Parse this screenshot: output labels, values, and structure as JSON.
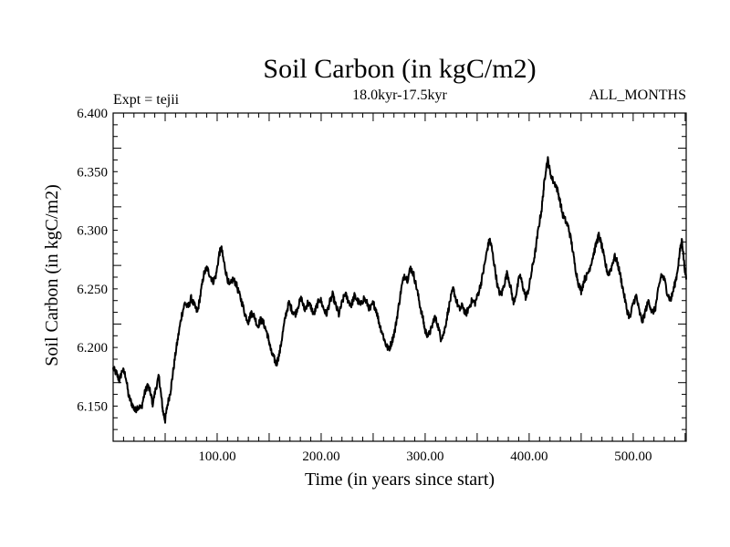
{
  "chart_data": {
    "type": "line",
    "title": "Soil Carbon (in kgC/m2)",
    "subtitle": "18.0kyr-17.5kyr",
    "left_label": "Expt = tejii",
    "right_label": "ALL_MONTHS",
    "xlabel": "Time (in years since start)",
    "ylabel": "Soil Carbon (in kgC/m2)",
    "xlim": [
      0,
      551
    ],
    "ylim": [
      6.12,
      6.4
    ],
    "x_ticks": [
      {
        "value": 100,
        "label": "100.00"
      },
      {
        "value": 200,
        "label": "200.00"
      },
      {
        "value": 300,
        "label": "300.00"
      },
      {
        "value": 400,
        "label": "400.00"
      },
      {
        "value": 500,
        "label": "500.00"
      }
    ],
    "y_ticks": [
      {
        "value": 6.15,
        "label": "6.150"
      },
      {
        "value": 6.2,
        "label": "6.200"
      },
      {
        "value": 6.25,
        "label": "6.250"
      },
      {
        "value": 6.3,
        "label": "6.300"
      },
      {
        "value": 6.35,
        "label": "6.350"
      },
      {
        "value": 6.4,
        "label": "6.400"
      }
    ],
    "series": [
      {
        "name": "Soil Carbon",
        "color": "#000000",
        "points": [
          [
            0,
            6.182
          ],
          [
            3,
            6.178
          ],
          [
            6,
            6.172
          ],
          [
            9,
            6.181
          ],
          [
            12,
            6.176
          ],
          [
            15,
            6.158
          ],
          [
            18,
            6.152
          ],
          [
            21,
            6.146
          ],
          [
            24,
            6.15
          ],
          [
            27,
            6.148
          ],
          [
            30,
            6.16
          ],
          [
            33,
            6.168
          ],
          [
            36,
            6.161
          ],
          [
            38,
            6.152
          ],
          [
            41,
            6.165
          ],
          [
            44,
            6.175
          ],
          [
            46,
            6.16
          ],
          [
            48,
            6.145
          ],
          [
            50,
            6.138
          ],
          [
            52,
            6.15
          ],
          [
            55,
            6.162
          ],
          [
            57,
            6.175
          ],
          [
            60,
            6.195
          ],
          [
            63,
            6.212
          ],
          [
            66,
            6.228
          ],
          [
            69,
            6.238
          ],
          [
            72,
            6.234
          ],
          [
            75,
            6.242
          ],
          [
            78,
            6.236
          ],
          [
            81,
            6.23
          ],
          [
            84,
            6.245
          ],
          [
            87,
            6.262
          ],
          [
            90,
            6.268
          ],
          [
            93,
            6.262
          ],
          [
            96,
            6.256
          ],
          [
            99,
            6.262
          ],
          [
            102,
            6.28
          ],
          [
            104,
            6.285
          ],
          [
            106,
            6.275
          ],
          [
            109,
            6.262
          ],
          [
            112,
            6.252
          ],
          [
            115,
            6.258
          ],
          [
            118,
            6.255
          ],
          [
            121,
            6.246
          ],
          [
            124,
            6.238
          ],
          [
            127,
            6.228
          ],
          [
            130,
            6.222
          ],
          [
            133,
            6.23
          ],
          [
            136,
            6.226
          ],
          [
            139,
            6.218
          ],
          [
            142,
            6.224
          ],
          [
            145,
            6.22
          ],
          [
            148,
            6.212
          ],
          [
            150,
            6.205
          ],
          [
            152,
            6.196
          ],
          [
            155,
            6.19
          ],
          [
            157,
            6.186
          ],
          [
            160,
            6.195
          ],
          [
            163,
            6.212
          ],
          [
            166,
            6.228
          ],
          [
            169,
            6.238
          ],
          [
            172,
            6.232
          ],
          [
            175,
            6.228
          ],
          [
            178,
            6.236
          ],
          [
            181,
            6.242
          ],
          [
            184,
            6.232
          ],
          [
            187,
            6.238
          ],
          [
            190,
            6.235
          ],
          [
            193,
            6.228
          ],
          [
            196,
            6.236
          ],
          [
            199,
            6.242
          ],
          [
            202,
            6.234
          ],
          [
            205,
            6.228
          ],
          [
            208,
            6.238
          ],
          [
            211,
            6.245
          ],
          [
            214,
            6.236
          ],
          [
            217,
            6.228
          ],
          [
            220,
            6.238
          ],
          [
            223,
            6.246
          ],
          [
            226,
            6.24
          ],
          [
            229,
            6.236
          ],
          [
            232,
            6.244
          ],
          [
            235,
            6.24
          ],
          [
            238,
            6.236
          ],
          [
            241,
            6.242
          ],
          [
            244,
            6.238
          ],
          [
            247,
            6.232
          ],
          [
            250,
            6.238
          ],
          [
            253,
            6.232
          ],
          [
            256,
            6.22
          ],
          [
            259,
            6.212
          ],
          [
            262,
            6.203
          ],
          [
            265,
            6.198
          ],
          [
            268,
            6.205
          ],
          [
            271,
            6.215
          ],
          [
            274,
            6.232
          ],
          [
            277,
            6.25
          ],
          [
            280,
            6.262
          ],
          [
            283,
            6.258
          ],
          [
            286,
            6.268
          ],
          [
            289,
            6.262
          ],
          [
            292,
            6.25
          ],
          [
            295,
            6.236
          ],
          [
            298,
            6.224
          ],
          [
            300,
            6.214
          ],
          [
            303,
            6.21
          ],
          [
            306,
            6.216
          ],
          [
            309,
            6.226
          ],
          [
            312,
            6.22
          ],
          [
            315,
            6.208
          ],
          [
            318,
            6.212
          ],
          [
            321,
            6.226
          ],
          [
            324,
            6.24
          ],
          [
            327,
            6.25
          ],
          [
            330,
            6.24
          ],
          [
            333,
            6.232
          ],
          [
            336,
            6.236
          ],
          [
            339,
            6.228
          ],
          [
            342,
            6.234
          ],
          [
            345,
            6.24
          ],
          [
            348,
            6.238
          ],
          [
            351,
            6.246
          ],
          [
            354,
            6.256
          ],
          [
            357,
            6.27
          ],
          [
            360,
            6.285
          ],
          [
            362,
            6.292
          ],
          [
            364,
            6.285
          ],
          [
            367,
            6.268
          ],
          [
            370,
            6.25
          ],
          [
            373,
            6.244
          ],
          [
            376,
            6.254
          ],
          [
            379,
            6.264
          ],
          [
            382,
            6.252
          ],
          [
            385,
            6.238
          ],
          [
            388,
            6.248
          ],
          [
            391,
            6.262
          ],
          [
            394,
            6.252
          ],
          [
            397,
            6.242
          ],
          [
            400,
            6.252
          ],
          [
            403,
            6.268
          ],
          [
            406,
            6.282
          ],
          [
            409,
            6.302
          ],
          [
            412,
            6.318
          ],
          [
            414,
            6.336
          ],
          [
            416,
            6.352
          ],
          [
            418,
            6.36
          ],
          [
            420,
            6.35
          ],
          [
            423,
            6.342
          ],
          [
            426,
            6.338
          ],
          [
            429,
            6.328
          ],
          [
            432,
            6.314
          ],
          [
            435,
            6.308
          ],
          [
            438,
            6.302
          ],
          [
            441,
            6.288
          ],
          [
            444,
            6.27
          ],
          [
            447,
            6.256
          ],
          [
            450,
            6.248
          ],
          [
            453,
            6.258
          ],
          [
            456,
            6.262
          ],
          [
            459,
            6.27
          ],
          [
            462,
            6.28
          ],
          [
            465,
            6.29
          ],
          [
            467,
            6.296
          ],
          [
            470,
            6.286
          ],
          [
            473,
            6.272
          ],
          [
            476,
            6.262
          ],
          [
            479,
            6.268
          ],
          [
            482,
            6.278
          ],
          [
            485,
            6.272
          ],
          [
            488,
            6.26
          ],
          [
            491,
            6.246
          ],
          [
            494,
            6.232
          ],
          [
            497,
            6.225
          ],
          [
            500,
            6.238
          ],
          [
            503,
            6.244
          ],
          [
            506,
            6.23
          ],
          [
            509,
            6.222
          ],
          [
            512,
            6.232
          ],
          [
            515,
            6.24
          ],
          [
            518,
            6.23
          ],
          [
            521,
            6.232
          ],
          [
            524,
            6.248
          ],
          [
            527,
            6.262
          ],
          [
            530,
            6.258
          ],
          [
            533,
            6.246
          ],
          [
            536,
            6.24
          ],
          [
            539,
            6.25
          ],
          [
            542,
            6.262
          ],
          [
            545,
            6.282
          ],
          [
            547,
            6.292
          ],
          [
            549,
            6.272
          ],
          [
            551,
            6.258
          ]
        ]
      }
    ]
  }
}
